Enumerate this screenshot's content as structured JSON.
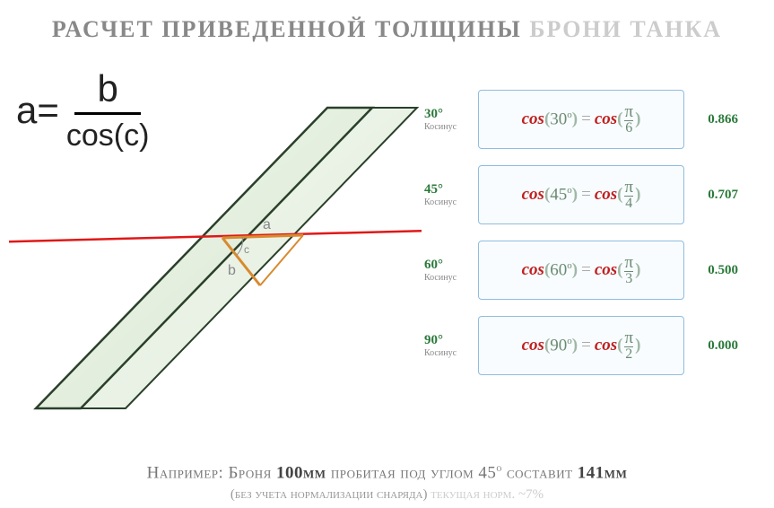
{
  "title": {
    "main": "РАСЧЕТ ПРИВЕДЕННОЙ ТОЛЩИНЫ",
    "light": "БРОНИ ТАНКА"
  },
  "formula": {
    "lhs": "a=",
    "numerator": "b",
    "denominator": "cos(c)"
  },
  "diagram": {
    "armor_color": "#cde5c4",
    "armor_stroke": "#2a402a",
    "trajectory_color": "#e01818",
    "a_line_color": "#d88a2e",
    "b_line_color": "#d88a2e",
    "label_a": "a",
    "label_b": "b",
    "label_c": "c"
  },
  "cosines": [
    {
      "deg": "30",
      "sub": "Косинус",
      "pi_den": "6",
      "value": "0.866"
    },
    {
      "deg": "45",
      "sub": "Косинус",
      "pi_den": "4",
      "value": "0.707"
    },
    {
      "deg": "60",
      "sub": "Косинус",
      "pi_den": "3",
      "value": "0.500"
    },
    {
      "deg": "90",
      "sub": "Косинус",
      "pi_den": "2",
      "value": "0.000"
    }
  ],
  "footer": {
    "pre": "Например: Броня ",
    "thick": "100мм",
    "mid": " пробитая под углом 45",
    "deg": "о",
    "mid2": " составит ",
    "eff": "141мм"
  },
  "footer_sub": {
    "main": "(без учета нормализации снаряда)",
    "light": " текущая норм. ~7%"
  },
  "colors": {
    "title_main": "#888888",
    "title_light": "#cccccc",
    "box_border": "#8fbde0",
    "box_bg": "#f8fcfe",
    "cos_word": "#c02020",
    "paren": "#9fb8a5",
    "arg": "#6a8a72",
    "value": "#2a7a3a"
  }
}
